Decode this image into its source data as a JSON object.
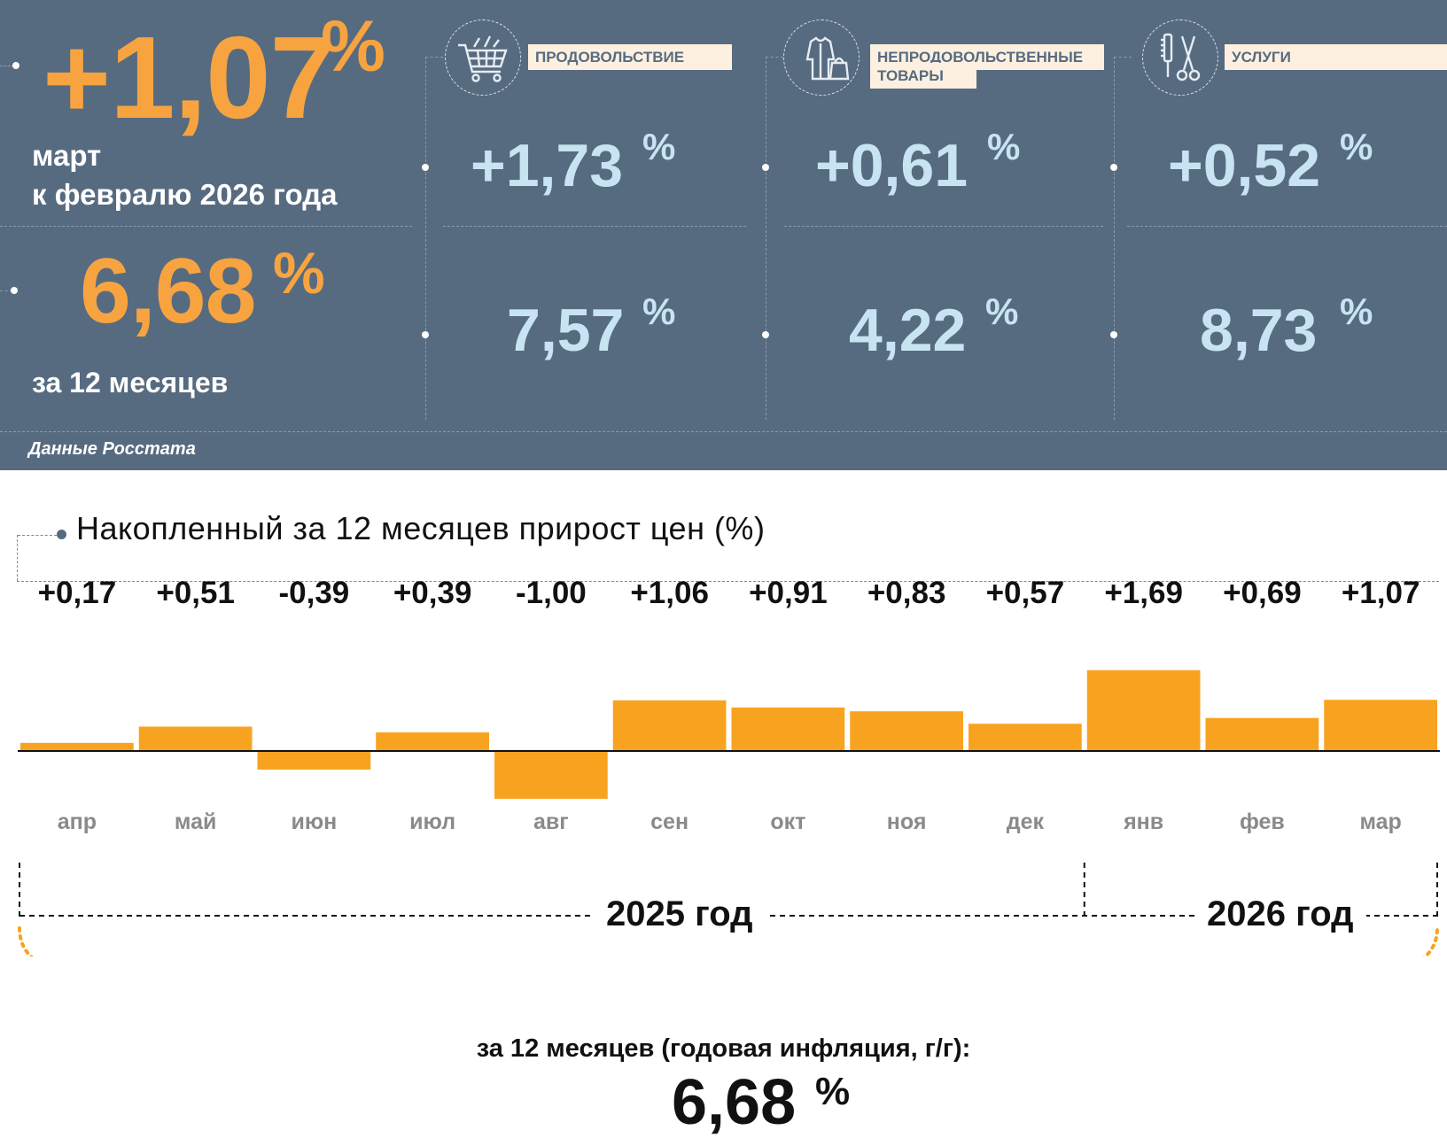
{
  "headline": {
    "monthly_value": "+1,07",
    "monthly_pct": "%",
    "monthly_label_line1": "март",
    "monthly_label_line2": "к февралю 2026 года",
    "annual_value": "6,68",
    "annual_pct": "%",
    "annual_label": "за 12 месяцев",
    "source": "Данные Росстата"
  },
  "categories": [
    {
      "icon": "shopping-cart-icon",
      "label_line1": "ПРОДОВОЛЬСТВИЕ",
      "label_line2": "",
      "monthly": "+1,73",
      "annual": "7,57",
      "pct": "%"
    },
    {
      "icon": "clothing-bag-icon",
      "label_line1": "НЕПРОДОВОЛЬСТВЕННЫЕ",
      "label_line2": "ТОВАРЫ",
      "monthly": "+0,61",
      "annual": "4,22",
      "pct": "%"
    },
    {
      "icon": "scissors-comb-icon",
      "label_line1": "УСЛУГИ",
      "label_line2": "",
      "monthly": "+0,52",
      "annual": "8,73",
      "pct": "%"
    }
  ],
  "colors": {
    "panel": "#576b80",
    "accent_orange": "#f7a440",
    "light_blue": "#c8e4f2",
    "bar": "#f8a31f",
    "label_bg": "#fdf0e0"
  },
  "chart_data": {
    "type": "bar",
    "title": "Накопленный за 12 месяцев прирост цен (%)",
    "categories": [
      "апр",
      "май",
      "июн",
      "июл",
      "авг",
      "сен",
      "окт",
      "ноя",
      "дек",
      "янв",
      "фев",
      "мар"
    ],
    "values": [
      0.17,
      0.51,
      -0.39,
      0.39,
      -1.0,
      1.06,
      0.91,
      0.83,
      0.57,
      1.69,
      0.69,
      1.07
    ],
    "value_labels": [
      "+0,17",
      "+0,51",
      "-0,39",
      "+0,39",
      "-1,00",
      "+1,06",
      "+0,91",
      "+0,83",
      "+0,57",
      "+1,69",
      "+0,69",
      "+1,07"
    ],
    "year_groups": [
      {
        "label": "2025 год",
        "months": 9
      },
      {
        "label": "2026 год",
        "months": 3
      }
    ],
    "summary_label": "за 12 месяцев (годовая инфляция, г/г):",
    "summary_value": "6,68",
    "summary_pct": "%"
  }
}
